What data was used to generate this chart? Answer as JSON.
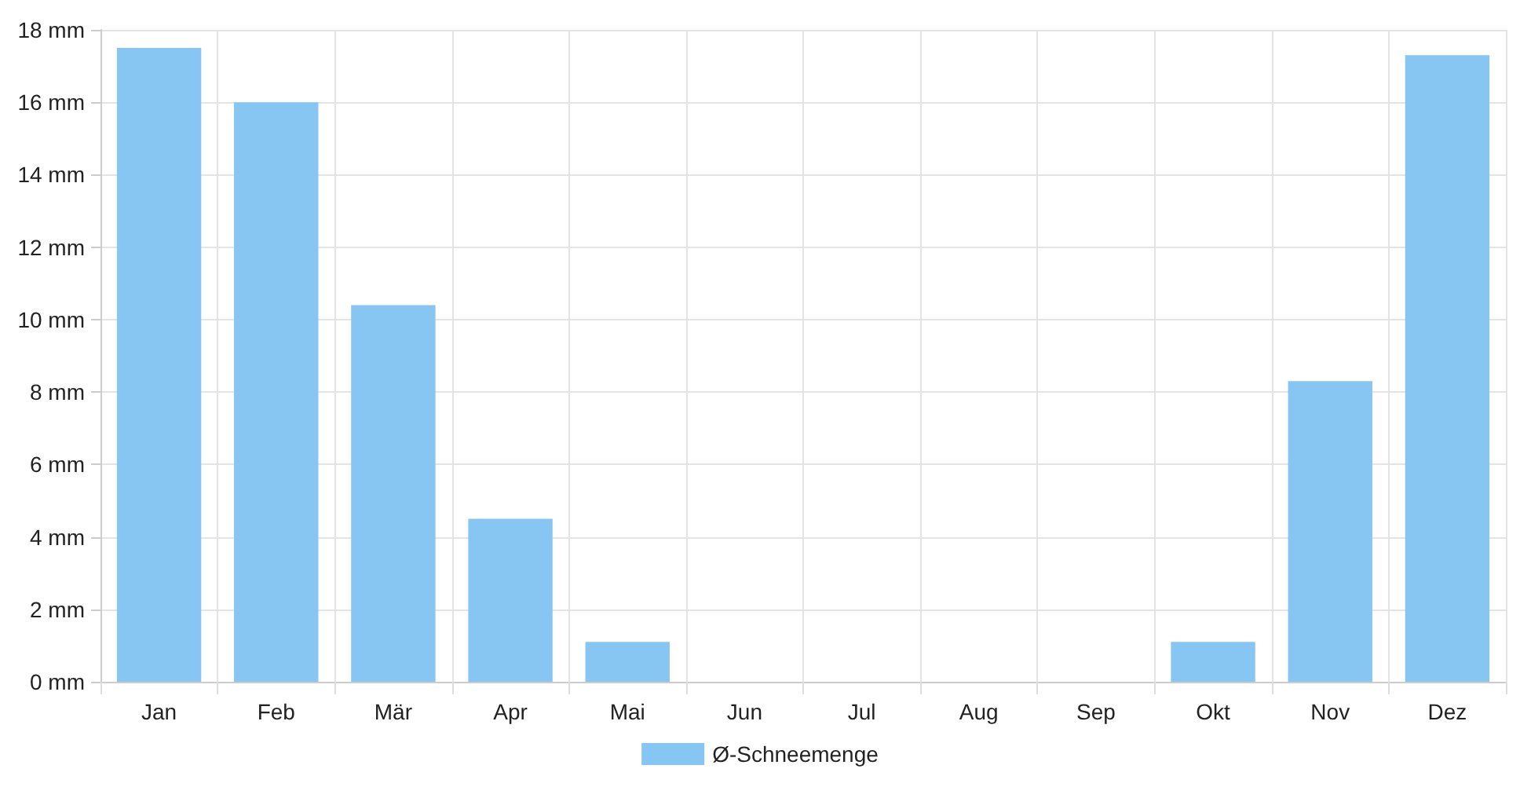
{
  "chart_data": {
    "type": "bar",
    "categories": [
      "Jan",
      "Feb",
      "Mär",
      "Apr",
      "Mai",
      "Jun",
      "Jul",
      "Aug",
      "Sep",
      "Okt",
      "Nov",
      "Dez"
    ],
    "series": [
      {
        "name": "Ø-Schneemenge",
        "color": "#87c6f2",
        "values": [
          17.5,
          16.0,
          10.4,
          4.5,
          1.1,
          0,
          0,
          0,
          0,
          1.1,
          8.3,
          17.3
        ]
      }
    ],
    "ylim": [
      0,
      18
    ],
    "yticks": [
      {
        "value": 0,
        "label": "0 mm"
      },
      {
        "value": 2,
        "label": "2 mm"
      },
      {
        "value": 4,
        "label": "4 mm"
      },
      {
        "value": 6,
        "label": "6 mm"
      },
      {
        "value": 8,
        "label": "8 mm"
      },
      {
        "value": 10,
        "label": "10 mm"
      },
      {
        "value": 12,
        "label": "12 mm"
      },
      {
        "value": 14,
        "label": "14 mm"
      },
      {
        "value": 16,
        "label": "16 mm"
      },
      {
        "value": 18,
        "label": "18 mm"
      }
    ],
    "grid": true,
    "legend": "bottom"
  }
}
